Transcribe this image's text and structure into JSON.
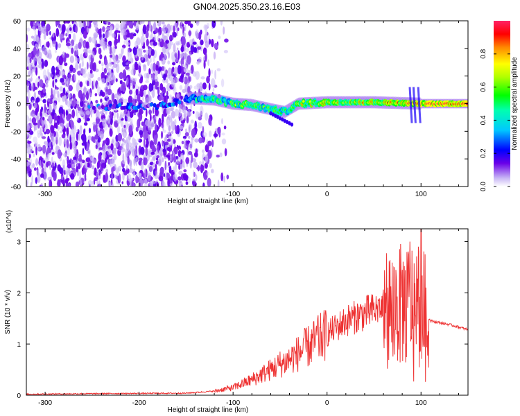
{
  "title": "GN04.2025.350.23.16.E03",
  "chart_data": [
    {
      "type": "heatmap",
      "name": "spectrogram",
      "xlabel": "Height of straight line (km)",
      "ylabel": "Frequency (Hz)",
      "xlim": [
        -320,
        150
      ],
      "ylim": [
        -60,
        60
      ],
      "xticks": [
        -300,
        -200,
        -100,
        0,
        100
      ],
      "yticks": [
        -60,
        -40,
        -20,
        0,
        20,
        40,
        60
      ],
      "colorbar": {
        "label": "Normalized spectral amplitude",
        "range": [
          0,
          1
        ],
        "ticks": [
          "0.0",
          "0.2",
          "0.4",
          "0.6",
          "0.8"
        ],
        "tick_values": [
          0.0,
          0.2,
          0.4,
          0.6,
          0.8
        ]
      },
      "ridge": {
        "description_points": [
          {
            "x": -260,
            "y": -3,
            "amp": 0.25
          },
          {
            "x": -220,
            "y": -2,
            "amp": 0.25
          },
          {
            "x": -180,
            "y": -2,
            "amp": 0.25
          },
          {
            "x": -145,
            "y": 4,
            "amp": 0.45
          },
          {
            "x": -120,
            "y": 3,
            "amp": 0.5
          },
          {
            "x": -100,
            "y": 0,
            "amp": 0.55
          },
          {
            "x": -80,
            "y": -1,
            "amp": 0.55
          },
          {
            "x": -60,
            "y": -4,
            "amp": 0.5
          },
          {
            "x": -45,
            "y": -6,
            "amp": 0.5
          },
          {
            "x": -30,
            "y": 0,
            "amp": 0.65
          },
          {
            "x": 0,
            "y": 1,
            "amp": 0.7
          },
          {
            "x": 50,
            "y": 1,
            "amp": 0.75
          },
          {
            "x": 100,
            "y": 0,
            "amp": 0.9
          },
          {
            "x": 150,
            "y": 0,
            "amp": 0.95
          }
        ]
      }
    },
    {
      "type": "line",
      "name": "snr",
      "xlabel": "Height of straight line (km)",
      "ylabel": "SNR (10 * v/v)",
      "yscale_label": "(x10^4)",
      "xlim": [
        -320,
        150
      ],
      "ylim": [
        0,
        3.25
      ],
      "xticks": [
        -300,
        -200,
        -100,
        0,
        100
      ],
      "yticks": [
        0,
        1,
        2,
        3
      ],
      "series_color": "#ee3333",
      "envelope": [
        {
          "x": -320,
          "y": 0.02
        },
        {
          "x": -250,
          "y": 0.03
        },
        {
          "x": -150,
          "y": 0.04
        },
        {
          "x": -120,
          "y": 0.08
        },
        {
          "x": -100,
          "y": 0.15
        },
        {
          "x": -80,
          "y": 0.3
        },
        {
          "x": -60,
          "y": 0.5
        },
        {
          "x": -40,
          "y": 0.7
        },
        {
          "x": -20,
          "y": 0.95
        },
        {
          "x": 0,
          "y": 1.2
        },
        {
          "x": 20,
          "y": 1.45
        },
        {
          "x": 40,
          "y": 1.6
        },
        {
          "x": 60,
          "y": 1.7
        },
        {
          "x": 80,
          "y": 1.75
        },
        {
          "x": 100,
          "y": 1.8
        },
        {
          "x": 110,
          "y": 1.45
        },
        {
          "x": 130,
          "y": 1.38
        },
        {
          "x": 150,
          "y": 1.28
        }
      ],
      "peaks": [
        {
          "x": -50,
          "y": 0.85
        },
        {
          "x": -25,
          "y": 1.1
        },
        {
          "x": -10,
          "y": 1.5
        },
        {
          "x": 55,
          "y": 1.85
        },
        {
          "x": 62,
          "y": 2.0
        },
        {
          "x": 80,
          "y": 2.45
        },
        {
          "x": 88,
          "y": 3.0
        },
        {
          "x": 97,
          "y": 2.9
        },
        {
          "x": 100,
          "y": 3.25
        }
      ]
    }
  ]
}
